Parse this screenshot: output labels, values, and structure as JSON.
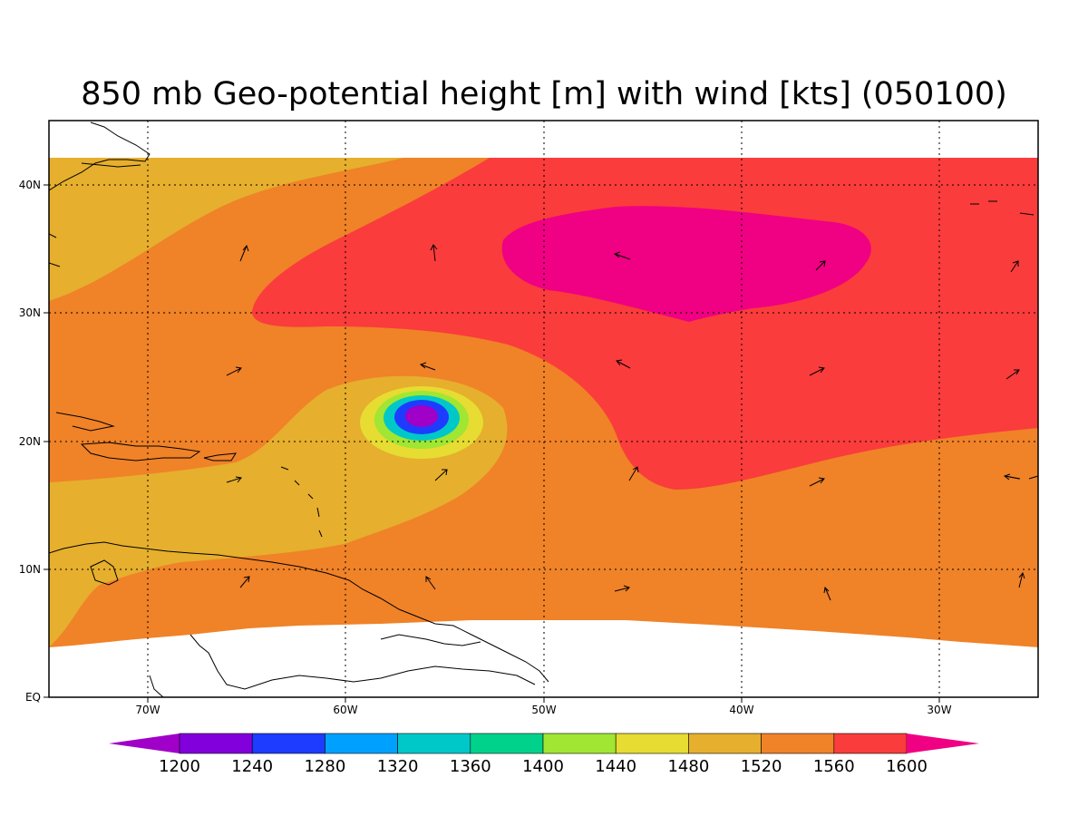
{
  "title": "850 mb Geo-potential height [m] with wind [kts] (050100)",
  "axes": {
    "lon_ticks": [
      "70W",
      "60W",
      "50W",
      "40W",
      "30W"
    ],
    "lat_ticks": [
      "EQ",
      "10N",
      "20N",
      "30N",
      "40N"
    ]
  },
  "colorbar": {
    "levels": [
      "1200",
      "1240",
      "1280",
      "1320",
      "1360",
      "1400",
      "1440",
      "1480",
      "1520",
      "1560",
      "1600"
    ],
    "colors": [
      "#a000c8",
      "#8200dc",
      "#1e3cff",
      "#00a0ff",
      "#00c8c8",
      "#00d28c",
      "#a0e632",
      "#e6dc32",
      "#e6af2d",
      "#f08228",
      "#fa3c3c",
      "#f00082"
    ]
  },
  "field_colors": {
    "c1200": "#a000c8",
    "c1240": "#1e3cff",
    "c1320": "#00c8c8",
    "c1400": "#a0e632",
    "c1440": "#e6dc32",
    "c1480": "#e6af2d",
    "c1520": "#f08228",
    "c1560": "#fa3c3c",
    "c1600": "#f00082"
  }
}
